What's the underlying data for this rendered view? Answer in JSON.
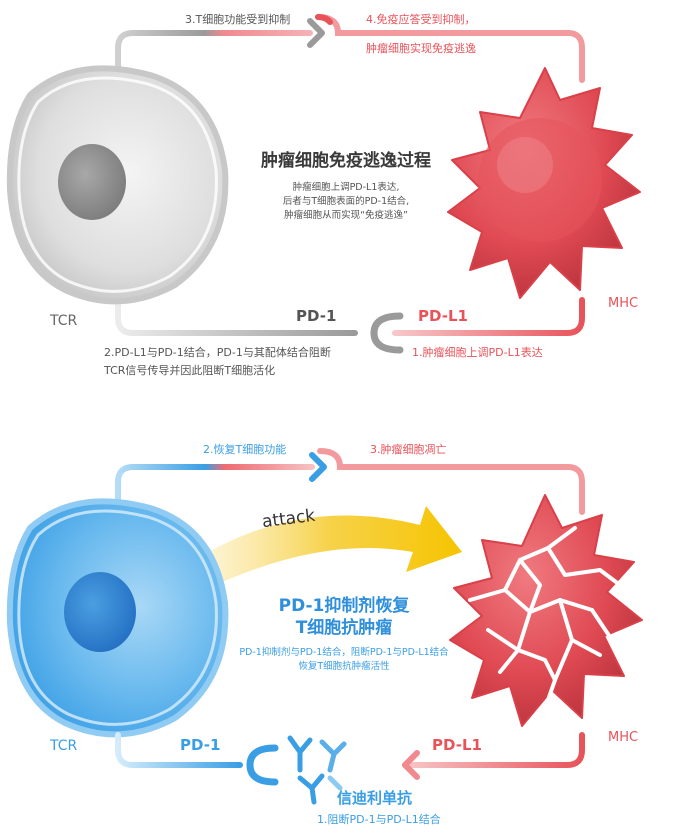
{
  "top": {
    "step3": "3.T细胞功能受到抑制",
    "step4_line1": "4.免疫应答受到抑制，",
    "step4_line2": "肿瘤细胞实现免疫逃逸",
    "title": "肿瘤细胞免疫逃逸过程",
    "desc_line1": "肿瘤细胞上调PD-L1表达,",
    "desc_line2": "后者与T细胞表面的PD-1结合,",
    "desc_line3": "肿瘤细胞从而实现“免疫逃逸”",
    "tcr": "TCR",
    "mhc": "MHC",
    "pd1": "PD-1",
    "pdl1": "PD-L1",
    "step2_line1": "2.PD-L1与PD-1结合，PD-1与其配体结合阻断",
    "step2_line2": "TCR信号传导并因此阻断T细胞活化",
    "step1": "1.肿瘤细胞上调PD-L1表达"
  },
  "bottom": {
    "step2": "2.恢复T细胞功能",
    "step3": "3.肿瘤细胞凋亡",
    "attack": "attack",
    "title_line1": "PD-1抑制剂恢复",
    "title_line2": "T细胞抗肿瘤",
    "desc_line1": "PD-1抑制剂与PD-1结合，阻断PD-1与PD-L1结合",
    "desc_line2": "恢复T细胞抗肿瘤活性",
    "tcr": "TCR",
    "mhc": "MHC",
    "pd1": "PD-1",
    "pdl1": "PD-L1",
    "drug": "信迪利单抗",
    "step1": "1.阻断PD-1与PD-L1结合"
  },
  "colors": {
    "red": "#e8535a",
    "blue": "#3a9ee4",
    "gray": "#9a9a9a",
    "yellow": "#f5c400"
  }
}
